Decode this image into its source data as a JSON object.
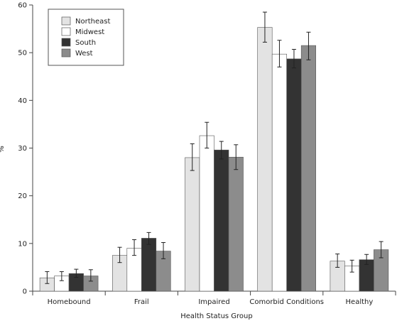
{
  "chart_data": {
    "type": "bar",
    "title": "",
    "xlabel": "Health Status Group",
    "ylabel": "%",
    "ylim": [
      0,
      60
    ],
    "yticks": [
      0,
      10,
      20,
      30,
      40,
      50,
      60
    ],
    "grid": false,
    "legend_position": "top-left",
    "error_bars": true,
    "categories": [
      "Homebound",
      "Frail",
      "Impaired",
      "Comorbid Conditions",
      "Healthy"
    ],
    "series": [
      {
        "name": "Northeast",
        "color": "#e3e3e3",
        "values": [
          2.8,
          7.5,
          28.0,
          55.3,
          6.3
        ],
        "err_low": [
          1.6,
          6.0,
          25.3,
          52.2,
          5.0
        ],
        "err_high": [
          4.1,
          9.2,
          30.9,
          58.5,
          7.8
        ]
      },
      {
        "name": "Midwest",
        "color": "#ffffff",
        "values": [
          3.2,
          9.0,
          32.6,
          49.7,
          5.3
        ],
        "err_low": [
          2.2,
          7.5,
          30.0,
          47.0,
          4.0
        ],
        "err_high": [
          4.1,
          10.8,
          35.4,
          52.6,
          6.5
        ]
      },
      {
        "name": "South",
        "color": "#333333",
        "values": [
          3.7,
          11.1,
          29.6,
          48.7,
          6.6
        ],
        "err_low": [
          2.9,
          9.8,
          27.7,
          46.8,
          5.6
        ],
        "err_high": [
          4.6,
          12.3,
          31.4,
          50.7,
          7.7
        ]
      },
      {
        "name": "West",
        "color": "#8c8c8c",
        "values": [
          3.2,
          8.4,
          28.1,
          51.5,
          8.7
        ],
        "err_low": [
          2.1,
          6.8,
          25.5,
          48.5,
          7.0
        ],
        "err_high": [
          4.5,
          10.2,
          30.7,
          54.3,
          10.4
        ]
      }
    ]
  }
}
